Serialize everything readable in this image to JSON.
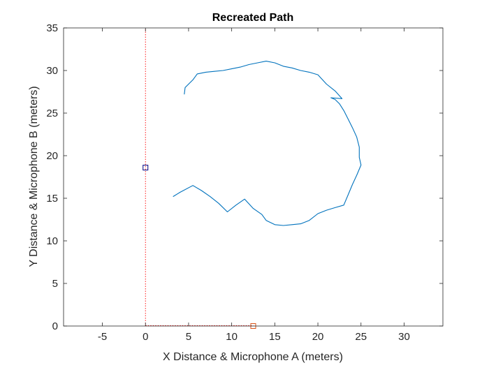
{
  "chart_data": {
    "type": "line",
    "title": "Recreated Path",
    "xlabel": "X Distance & Microphone A (meters)",
    "ylabel": "Y Distance & Microphone B (meters)",
    "xlim": [
      -9.5,
      34.5
    ],
    "ylim": [
      0,
      35
    ],
    "xticks": [
      -5,
      0,
      5,
      10,
      15,
      20,
      25,
      30
    ],
    "yticks": [
      0,
      5,
      10,
      15,
      20,
      25,
      30,
      35
    ],
    "grid": false,
    "legend": "none",
    "colors": {
      "path": "#0072BD",
      "microphone_a": "#D95319",
      "microphone_b": "#00007F",
      "guide_lines": "#FF0000",
      "axes": "#262626"
    },
    "series": [
      {
        "x": [
          3.2,
          4.0,
          5.5,
          6.5,
          7.5,
          8.5,
          9.5,
          10.5,
          11.5,
          12.5,
          13.5,
          14.0,
          15.0,
          16.0,
          17.0,
          18.0,
          19.0,
          20.0,
          21.0,
          22.0,
          23.0,
          23.5,
          24.0,
          24.5,
          25.0,
          24.8,
          24.8,
          24.5,
          24.0,
          23.5,
          23.0,
          22.5,
          22.0,
          21.5,
          22.8,
          22.0,
          21.0,
          20.0,
          19.0,
          18.0,
          17.0,
          16.0,
          15.0,
          14.0,
          13.0,
          12.0,
          11.0,
          10.0,
          9.0,
          8.0,
          7.0,
          6.0,
          5.5,
          5.0,
          4.6,
          4.5
        ],
        "y": [
          15.2,
          15.7,
          16.5,
          15.9,
          15.2,
          14.4,
          13.4,
          14.2,
          14.9,
          13.8,
          13.1,
          12.4,
          11.9,
          11.8,
          11.9,
          12.0,
          12.4,
          13.2,
          13.6,
          13.9,
          14.2,
          15.4,
          16.6,
          17.7,
          18.9,
          19.8,
          21.0,
          22.2,
          23.3,
          24.3,
          25.3,
          26.1,
          26.6,
          26.8,
          26.7,
          27.6,
          28.4,
          29.5,
          29.8,
          30.0,
          30.3,
          30.5,
          30.9,
          31.1,
          30.9,
          30.7,
          30.4,
          30.2,
          30.0,
          29.9,
          29.8,
          29.6,
          28.9,
          28.4,
          28.0,
          27.2
        ]
      }
    ],
    "markers": [
      {
        "x": 12.5,
        "y": 0
      },
      {
        "x": 0,
        "y": 18.6
      }
    ]
  }
}
